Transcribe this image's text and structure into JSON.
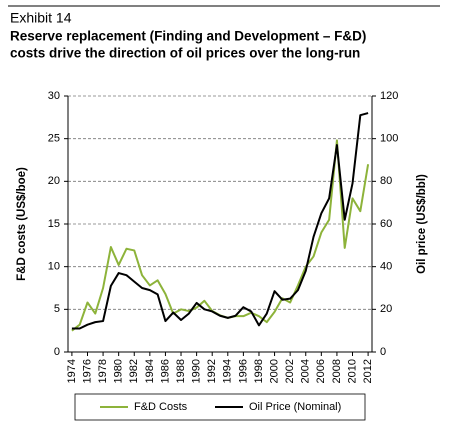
{
  "chart_data": {
    "type": "line",
    "exhibit": "Exhibit 14",
    "title": [
      "Reserve replacement (Finding and Development – F&D)",
      "costs drive the direction of oil prices over the long-run"
    ],
    "ylabel": "F&D costs (US$/boe)",
    "y2label": "Oil price (US$/bbl)",
    "x": [
      1974,
      1975,
      1976,
      1977,
      1978,
      1979,
      1980,
      1981,
      1982,
      1983,
      1984,
      1985,
      1986,
      1987,
      1988,
      1989,
      1990,
      1991,
      1992,
      1993,
      1994,
      1995,
      1996,
      1997,
      1998,
      1999,
      2000,
      2001,
      2002,
      2003,
      2004,
      2005,
      2006,
      2007,
      2008,
      2009,
      2010,
      2011,
      2012
    ],
    "xlim": [
      1973.5,
      2012.5
    ],
    "xticks": [
      1974,
      1976,
      1978,
      1980,
      1982,
      1984,
      1986,
      1988,
      1990,
      1992,
      1994,
      1996,
      1998,
      2000,
      2002,
      2004,
      2006,
      2008,
      2010,
      2012
    ],
    "ylim": [
      0,
      30
    ],
    "yticks": [
      0,
      5,
      10,
      15,
      20,
      25,
      30
    ],
    "y2lim": [
      0,
      120
    ],
    "y2ticks": [
      0,
      20,
      40,
      60,
      80,
      100,
      120
    ],
    "grid": true,
    "legend": "bottom",
    "series": [
      {
        "name": "F&D Costs",
        "color": "#8db33a",
        "values": [
          2.5,
          3.2,
          5.8,
          4.5,
          7.5,
          12.3,
          10.2,
          12.1,
          11.9,
          9.0,
          7.8,
          8.4,
          6.8,
          4.5,
          5.0,
          4.8,
          5.2,
          6.0,
          4.8,
          4.3,
          4.0,
          4.2,
          4.2,
          4.6,
          4.2,
          3.5,
          4.7,
          6.3,
          5.8,
          7.8,
          10.0,
          11.2,
          14.0,
          15.5,
          24.8,
          12.2,
          18.0,
          16.5,
          22.0
        ]
      },
      {
        "name": "Oil Price (Nominal)",
        "color": "#000000",
        "axis": "y2",
        "values": [
          11,
          11,
          12.8,
          14,
          14.5,
          31,
          37,
          36,
          33,
          30,
          29,
          27,
          14.5,
          18.5,
          15,
          18,
          23,
          20,
          19,
          17,
          16,
          17,
          21,
          19,
          12.5,
          18,
          28.5,
          24.5,
          25,
          29,
          38,
          54,
          65,
          72,
          97,
          62,
          79,
          111,
          112
        ]
      }
    ]
  }
}
